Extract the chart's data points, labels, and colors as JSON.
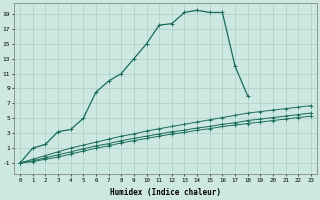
{
  "xlabel": "Humidex (Indice chaleur)",
  "bg_color": "#cce8e0",
  "line_color": "#1a6b5a",
  "grid_color": "#aacfc8",
  "xlim": [
    -0.5,
    23.5
  ],
  "ylim": [
    -2.5,
    20.5
  ],
  "xticks": [
    0,
    1,
    2,
    3,
    4,
    5,
    6,
    7,
    8,
    9,
    10,
    11,
    12,
    13,
    14,
    15,
    16,
    17,
    18,
    19,
    20,
    21,
    22,
    23
  ],
  "yticks": [
    -1,
    1,
    3,
    5,
    7,
    9,
    11,
    13,
    15,
    17,
    19
  ],
  "main_x": [
    0,
    1,
    2,
    3,
    4,
    5,
    6,
    7,
    8,
    9,
    10,
    11,
    12,
    13,
    14,
    15,
    16,
    17,
    18
  ],
  "main_y": [
    -1,
    1,
    1.5,
    3.2,
    3.5,
    5.0,
    8.5,
    10,
    11,
    13,
    15,
    17.5,
    17.7,
    19.2,
    19.5,
    19.2,
    19.2,
    12,
    8
  ],
  "flat1_x": [
    0,
    1,
    2,
    3,
    4,
    5,
    6,
    7,
    8,
    9,
    10,
    11,
    12,
    13,
    14,
    15,
    16,
    17,
    18,
    19,
    20,
    21,
    22,
    23
  ],
  "flat1_y": [
    -1,
    -0.8,
    -0.5,
    -0.2,
    0.2,
    0.6,
    1.0,
    1.3,
    1.7,
    2.0,
    2.3,
    2.6,
    2.9,
    3.1,
    3.4,
    3.6,
    3.9,
    4.1,
    4.3,
    4.5,
    4.7,
    4.9,
    5.1,
    5.3
  ],
  "flat2_x": [
    0,
    1,
    2,
    3,
    4,
    5,
    6,
    7,
    8,
    9,
    10,
    11,
    12,
    13,
    14,
    15,
    16,
    17,
    18,
    19,
    20,
    21,
    22,
    23
  ],
  "flat2_y": [
    -1,
    -0.7,
    -0.3,
    0.1,
    0.5,
    0.9,
    1.3,
    1.6,
    2.0,
    2.3,
    2.6,
    2.9,
    3.2,
    3.4,
    3.7,
    3.9,
    4.2,
    4.4,
    4.7,
    4.9,
    5.1,
    5.3,
    5.5,
    5.7
  ],
  "flat3_x": [
    0,
    1,
    2,
    3,
    4,
    5,
    6,
    7,
    8,
    9,
    10,
    11,
    12,
    13,
    14,
    15,
    16,
    17,
    18,
    19,
    20,
    21,
    22,
    23
  ],
  "flat3_y": [
    -1,
    -0.5,
    0.0,
    0.5,
    1.0,
    1.4,
    1.8,
    2.2,
    2.6,
    2.9,
    3.3,
    3.6,
    3.9,
    4.2,
    4.5,
    4.8,
    5.1,
    5.4,
    5.7,
    5.9,
    6.1,
    6.3,
    6.5,
    6.7
  ]
}
